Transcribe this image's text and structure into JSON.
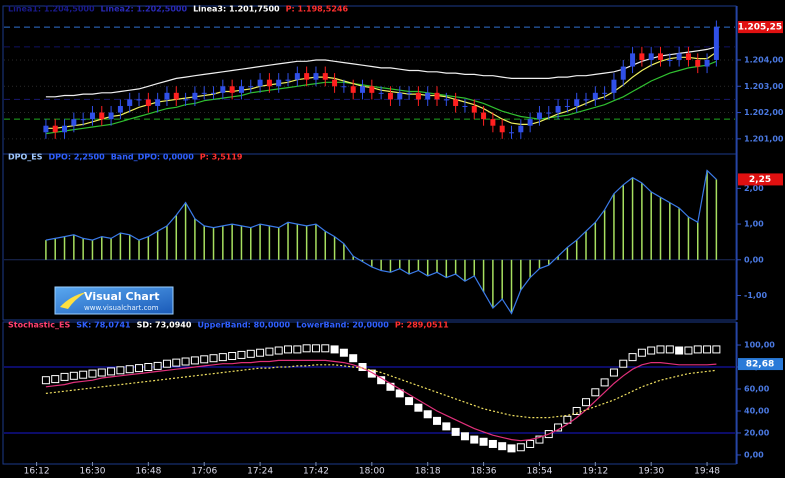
{
  "chart_data": [
    {
      "type": "candlestick",
      "header": [
        {
          "text": "Linea1: 1.204,5000",
          "color": "#1a1a8c"
        },
        {
          "text": "Linea2: 1.202,5000",
          "color": "#2a2ab8"
        },
        {
          "text": "Linea3: 1.201,7500",
          "color": "#ffffff"
        },
        {
          "text": "P: 1.198,5246",
          "color": "#ff3030"
        }
      ],
      "levels": [
        {
          "value": 1204.5,
          "color": "#101060"
        },
        {
          "value": 1202.5,
          "color": "#181870"
        },
        {
          "value": 1201.75,
          "color": "#22aa22"
        },
        {
          "value": 1205.25,
          "color": "#2f6fd0"
        }
      ],
      "current": {
        "value": 1205.25,
        "label": "1.205,25",
        "color": "#e01010"
      },
      "up_color": "#3050e8",
      "down_color": "#ff2020",
      "open": [
        1201.25,
        1201.5,
        1201.25,
        1201.5,
        1201.75,
        1201.75,
        1202.0,
        1201.75,
        1202.0,
        1202.25,
        1202.5,
        1202.5,
        1202.25,
        1202.5,
        1202.75,
        1202.5,
        1202.5,
        1202.75,
        1202.75,
        1202.75,
        1203.0,
        1202.75,
        1203.0,
        1203.0,
        1203.25,
        1203.0,
        1203.25,
        1203.25,
        1203.5,
        1203.25,
        1203.5,
        1203.25,
        1203.0,
        1203.0,
        1202.75,
        1203.0,
        1202.75,
        1202.75,
        1202.5,
        1202.75,
        1202.75,
        1202.5,
        1202.75,
        1202.5,
        1202.5,
        1202.25,
        1202.25,
        1202.0,
        1201.75,
        1201.5,
        1201.25,
        1201.25,
        1201.5,
        1201.75,
        1202.0,
        1202.0,
        1202.25,
        1202.25,
        1202.5,
        1202.5,
        1202.75,
        1202.75,
        1203.25,
        1203.75,
        1204.25,
        1204.0,
        1204.25,
        1204.0,
        1204.0,
        1204.25,
        1204.0,
        1203.75,
        1204.0
      ],
      "high": [
        1201.75,
        1201.75,
        1201.75,
        1202.0,
        1202.0,
        1202.25,
        1202.25,
        1202.25,
        1202.5,
        1202.75,
        1202.75,
        1202.75,
        1202.75,
        1203.0,
        1203.0,
        1202.75,
        1203.0,
        1203.0,
        1203.0,
        1203.25,
        1203.25,
        1203.25,
        1203.25,
        1203.5,
        1203.5,
        1203.5,
        1203.5,
        1203.75,
        1203.75,
        1203.75,
        1203.75,
        1203.5,
        1203.25,
        1203.25,
        1203.25,
        1203.25,
        1203.0,
        1203.0,
        1203.0,
        1203.0,
        1203.0,
        1203.0,
        1203.0,
        1202.75,
        1202.75,
        1202.5,
        1202.5,
        1202.25,
        1202.0,
        1201.75,
        1201.5,
        1201.75,
        1202.0,
        1202.25,
        1202.25,
        1202.5,
        1202.5,
        1202.75,
        1202.75,
        1203.0,
        1203.0,
        1203.5,
        1204.0,
        1204.5,
        1204.5,
        1204.5,
        1204.5,
        1204.25,
        1204.5,
        1204.5,
        1204.25,
        1204.25,
        1205.5
      ],
      "low": [
        1201.0,
        1201.0,
        1201.0,
        1201.25,
        1201.5,
        1201.5,
        1201.5,
        1201.5,
        1201.75,
        1202.0,
        1202.25,
        1202.0,
        1202.0,
        1202.25,
        1202.25,
        1202.25,
        1202.25,
        1202.5,
        1202.5,
        1202.5,
        1202.5,
        1202.5,
        1202.75,
        1202.75,
        1202.75,
        1202.75,
        1203.0,
        1203.0,
        1203.0,
        1203.0,
        1203.0,
        1202.75,
        1202.75,
        1202.5,
        1202.5,
        1202.5,
        1202.5,
        1202.25,
        1202.25,
        1202.5,
        1202.25,
        1202.25,
        1202.25,
        1202.25,
        1202.0,
        1202.0,
        1201.75,
        1201.5,
        1201.25,
        1201.0,
        1201.0,
        1201.0,
        1201.25,
        1201.5,
        1201.75,
        1201.75,
        1202.0,
        1202.0,
        1202.25,
        1202.25,
        1202.5,
        1202.5,
        1203.0,
        1203.5,
        1203.75,
        1203.75,
        1203.75,
        1203.75,
        1203.75,
        1203.75,
        1203.5,
        1203.5,
        1203.75
      ],
      "close": [
        1201.5,
        1201.25,
        1201.5,
        1201.75,
        1201.75,
        1202.0,
        1201.75,
        1202.0,
        1202.25,
        1202.5,
        1202.5,
        1202.25,
        1202.5,
        1202.75,
        1202.5,
        1202.5,
        1202.75,
        1202.75,
        1202.75,
        1203.0,
        1202.75,
        1203.0,
        1203.0,
        1203.25,
        1203.0,
        1203.25,
        1203.25,
        1203.5,
        1203.25,
        1203.5,
        1203.25,
        1203.0,
        1203.0,
        1202.75,
        1203.0,
        1202.75,
        1202.75,
        1202.5,
        1202.75,
        1202.75,
        1202.5,
        1202.75,
        1202.5,
        1202.5,
        1202.25,
        1202.25,
        1202.0,
        1201.75,
        1201.5,
        1201.25,
        1201.25,
        1201.5,
        1201.75,
        1202.0,
        1202.0,
        1202.25,
        1202.25,
        1202.5,
        1202.5,
        1202.75,
        1202.75,
        1203.25,
        1203.75,
        1204.25,
        1204.0,
        1204.25,
        1204.0,
        1204.0,
        1204.25,
        1204.0,
        1203.75,
        1204.0,
        1205.25
      ],
      "overlays": [
        {
          "color": "#f0f0f0",
          "values": [
            1202.6,
            1202.6,
            1202.65,
            1202.65,
            1202.7,
            1202.7,
            1202.75,
            1202.75,
            1202.8,
            1202.85,
            1202.9,
            1203.0,
            1203.1,
            1203.2,
            1203.3,
            1203.35,
            1203.4,
            1203.45,
            1203.5,
            1203.55,
            1203.6,
            1203.65,
            1203.7,
            1203.75,
            1203.8,
            1203.85,
            1203.9,
            1203.95,
            1203.95,
            1204.0,
            1204.0,
            1203.95,
            1203.9,
            1203.85,
            1203.8,
            1203.75,
            1203.7,
            1203.7,
            1203.65,
            1203.6,
            1203.6,
            1203.55,
            1203.55,
            1203.5,
            1203.5,
            1203.45,
            1203.45,
            1203.4,
            1203.4,
            1203.35,
            1203.3,
            1203.3,
            1203.3,
            1203.3,
            1203.3,
            1203.35,
            1203.35,
            1203.4,
            1203.4,
            1203.45,
            1203.5,
            1203.55,
            1203.65,
            1203.8,
            1203.95,
            1204.05,
            1204.15,
            1204.2,
            1204.25,
            1204.3,
            1204.35,
            1204.4,
            1204.5
          ]
        },
        {
          "color": "#30c030",
          "values": [
            1201.2,
            1201.25,
            1201.3,
            1201.35,
            1201.4,
            1201.45,
            1201.5,
            1201.55,
            1201.65,
            1201.75,
            1201.85,
            1201.95,
            1202.05,
            1202.15,
            1202.2,
            1202.3,
            1202.35,
            1202.45,
            1202.5,
            1202.55,
            1202.6,
            1202.65,
            1202.75,
            1202.8,
            1202.85,
            1202.9,
            1202.95,
            1203.0,
            1203.05,
            1203.1,
            1203.15,
            1203.15,
            1203.15,
            1203.1,
            1203.05,
            1203.0,
            1202.95,
            1202.9,
            1202.85,
            1202.8,
            1202.8,
            1202.75,
            1202.7,
            1202.65,
            1202.6,
            1202.55,
            1202.45,
            1202.35,
            1202.2,
            1202.05,
            1201.95,
            1201.85,
            1201.8,
            1201.75,
            1201.8,
            1201.85,
            1201.9,
            1202.0,
            1202.1,
            1202.2,
            1202.3,
            1202.45,
            1202.6,
            1202.8,
            1203.0,
            1203.2,
            1203.35,
            1203.5,
            1203.6,
            1203.7,
            1203.75,
            1203.8,
            1203.95
          ]
        },
        {
          "color": "#f0f060",
          "values": [
            1201.4,
            1201.4,
            1201.45,
            1201.5,
            1201.55,
            1201.65,
            1201.75,
            1201.85,
            1201.9,
            1202.05,
            1202.2,
            1202.3,
            1202.4,
            1202.45,
            1202.5,
            1202.55,
            1202.6,
            1202.65,
            1202.7,
            1202.8,
            1202.8,
            1202.85,
            1202.9,
            1203.0,
            1203.05,
            1203.1,
            1203.15,
            1203.25,
            1203.3,
            1203.35,
            1203.35,
            1203.3,
            1203.2,
            1203.1,
            1203.0,
            1202.95,
            1202.85,
            1202.8,
            1202.75,
            1202.7,
            1202.7,
            1202.65,
            1202.65,
            1202.6,
            1202.5,
            1202.4,
            1202.3,
            1202.15,
            1201.95,
            1201.75,
            1201.6,
            1201.55,
            1201.55,
            1201.65,
            1201.8,
            1201.95,
            1202.05,
            1202.2,
            1202.35,
            1202.5,
            1202.6,
            1202.8,
            1203.05,
            1203.35,
            1203.6,
            1203.8,
            1203.95,
            1204.05,
            1204.1,
            1204.1,
            1204.05,
            1204.05,
            1204.3
          ]
        }
      ],
      "xlim": [
        -4.5,
        74
      ],
      "ylim": [
        1200.5,
        1205.9
      ],
      "yticks": [
        {
          "value": 1204,
          "label": "1.204,00"
        },
        {
          "value": 1203,
          "label": "1.203,00"
        },
        {
          "value": 1202,
          "label": "1.202,00"
        },
        {
          "value": 1201,
          "label": "1.201,00"
        }
      ],
      "grid": true
    },
    {
      "type": "bar",
      "header": [
        {
          "text": "DPO_ES",
          "color": "#a0c8ff"
        },
        {
          "text": "DPO: 2,2500",
          "color": "#3060ff"
        },
        {
          "text": "Band_DPO: 0,0000",
          "color": "#3060ff"
        },
        {
          "text": "P: 3,5119",
          "color": "#ff3030"
        }
      ],
      "bar_color": "#a8e060",
      "line_color": "#3a7ae8",
      "current": {
        "value": 2.25,
        "label": "2,25",
        "color": "#e01010"
      },
      "values": [
        0.55,
        0.6,
        0.65,
        0.7,
        0.6,
        0.55,
        0.65,
        0.6,
        0.75,
        0.7,
        0.55,
        0.65,
        0.8,
        0.95,
        1.25,
        1.6,
        1.15,
        0.95,
        0.9,
        0.95,
        1.0,
        0.95,
        0.9,
        1.0,
        0.95,
        0.9,
        1.05,
        1.0,
        0.95,
        1.0,
        0.8,
        0.65,
        0.45,
        0.1,
        -0.05,
        -0.2,
        -0.3,
        -0.35,
        -0.25,
        -0.4,
        -0.3,
        -0.45,
        -0.35,
        -0.5,
        -0.4,
        -0.6,
        -0.45,
        -0.9,
        -1.35,
        -1.1,
        -1.5,
        -0.85,
        -0.5,
        -0.25,
        -0.15,
        0.1,
        0.35,
        0.55,
        0.8,
        1.05,
        1.4,
        1.85,
        2.1,
        2.3,
        2.15,
        1.9,
        1.75,
        1.6,
        1.45,
        1.2,
        1.05,
        2.5,
        2.25
      ],
      "xlim": [
        -4.5,
        74
      ],
      "ylim": [
        -1.63,
        2.85
      ],
      "yticks": [
        {
          "value": 2,
          "label": "2,00"
        },
        {
          "value": 1,
          "label": "1,00"
        },
        {
          "value": 0,
          "label": "0,00"
        },
        {
          "value": -1,
          "label": "-1,00"
        }
      ]
    },
    {
      "type": "stochastic",
      "header": [
        {
          "text": "Stochastic_ES",
          "color": "#ff4070"
        },
        {
          "text": "SK: 78,0741",
          "color": "#3060ff"
        },
        {
          "text": "SD: 73,0940",
          "color": "#ffffff"
        },
        {
          "text": "UpperBand: 80,0000",
          "color": "#3060ff"
        },
        {
          "text": "LowerBand: 20,0000",
          "color": "#3060ff"
        },
        {
          "text": "P: 289,0511",
          "color": "#ff3030"
        }
      ],
      "bands": [
        {
          "value": 80,
          "color": "#1818d0"
        },
        {
          "value": 20,
          "color": "#1818d0"
        }
      ],
      "current": {
        "value": 82.68,
        "label": "82,68",
        "color": "#2a7ad8"
      },
      "series": [
        {
          "color": "#ffffff",
          "marker": "square",
          "values": [
            68,
            69,
            71,
            72,
            73,
            74,
            75,
            76,
            77,
            78,
            79,
            80,
            81,
            83,
            84,
            85,
            86,
            87,
            88,
            89,
            90,
            91,
            92,
            93,
            94,
            95,
            96,
            96,
            97,
            97,
            97,
            96,
            93,
            88,
            80,
            74,
            68,
            62,
            56,
            49,
            43,
            37,
            31,
            26,
            21,
            17,
            14,
            12,
            10,
            8,
            6,
            7,
            10,
            14,
            19,
            25,
            32,
            40,
            48,
            57,
            66,
            75,
            83,
            89,
            93,
            95,
            96,
            96,
            95,
            95,
            96,
            96,
            96
          ]
        },
        {
          "color": "#e0307a",
          "marker": "line",
          "values": [
            62,
            63,
            64,
            66,
            67,
            68,
            70,
            71,
            72,
            73,
            74,
            75,
            76,
            77,
            78,
            79,
            80,
            81,
            82,
            83,
            83,
            84,
            84,
            85,
            85,
            86,
            86,
            86,
            86,
            86,
            86,
            85,
            84,
            82,
            79,
            75,
            70,
            65,
            60,
            55,
            50,
            45,
            40,
            36,
            32,
            28,
            24,
            21,
            18,
            16,
            14,
            13,
            14,
            16,
            19,
            23,
            28,
            34,
            41,
            49,
            57,
            65,
            72,
            78,
            82,
            84,
            84,
            83,
            82,
            82,
            82,
            82,
            82.68
          ]
        },
        {
          "color": "#f0e060",
          "marker": "dash",
          "values": [
            56,
            57,
            58,
            59,
            60,
            61,
            62,
            63,
            64,
            65,
            66,
            67,
            68,
            69,
            70,
            71,
            72,
            73,
            74,
            75,
            76,
            77,
            78,
            79,
            79,
            80,
            80,
            81,
            81,
            82,
            82,
            82,
            81,
            80,
            79,
            77,
            75,
            72,
            69,
            66,
            63,
            60,
            57,
            54,
            51,
            48,
            45,
            42,
            40,
            38,
            36,
            35,
            34,
            34,
            34,
            35,
            36,
            38,
            41,
            44,
            47,
            50,
            54,
            58,
            62,
            65,
            68,
            70,
            72,
            74,
            75,
            76,
            77
          ]
        }
      ],
      "xlim": [
        -4.5,
        74
      ],
      "ylim": [
        -6.4,
        117.3
      ],
      "yticks": [
        {
          "value": 100,
          "label": "100,00"
        },
        {
          "value": 80,
          "label": "80,00"
        },
        {
          "value": 60,
          "label": "60,00"
        },
        {
          "value": 40,
          "label": "40,00"
        },
        {
          "value": 20,
          "label": "20,00"
        },
        {
          "value": 0,
          "label": "0,00"
        }
      ],
      "xticks": [
        {
          "value": -1,
          "label": "16:12"
        },
        {
          "value": 5,
          "label": "16:30"
        },
        {
          "value": 11,
          "label": "16:48"
        },
        {
          "value": 17,
          "label": "17:06"
        },
        {
          "value": 23,
          "label": "17:24"
        },
        {
          "value": 29,
          "label": "17:42"
        },
        {
          "value": 35,
          "label": "18:00"
        },
        {
          "value": 41,
          "label": "18:18"
        },
        {
          "value": 47,
          "label": "18:36"
        },
        {
          "value": 53,
          "label": "18:54"
        },
        {
          "value": 59,
          "label": "19:12"
        },
        {
          "value": 65,
          "label": "19:30"
        },
        {
          "value": 71,
          "label": "19:48"
        }
      ]
    }
  ],
  "logo": {
    "title": "Visual Chart",
    "url": "www.visualchart.com"
  }
}
